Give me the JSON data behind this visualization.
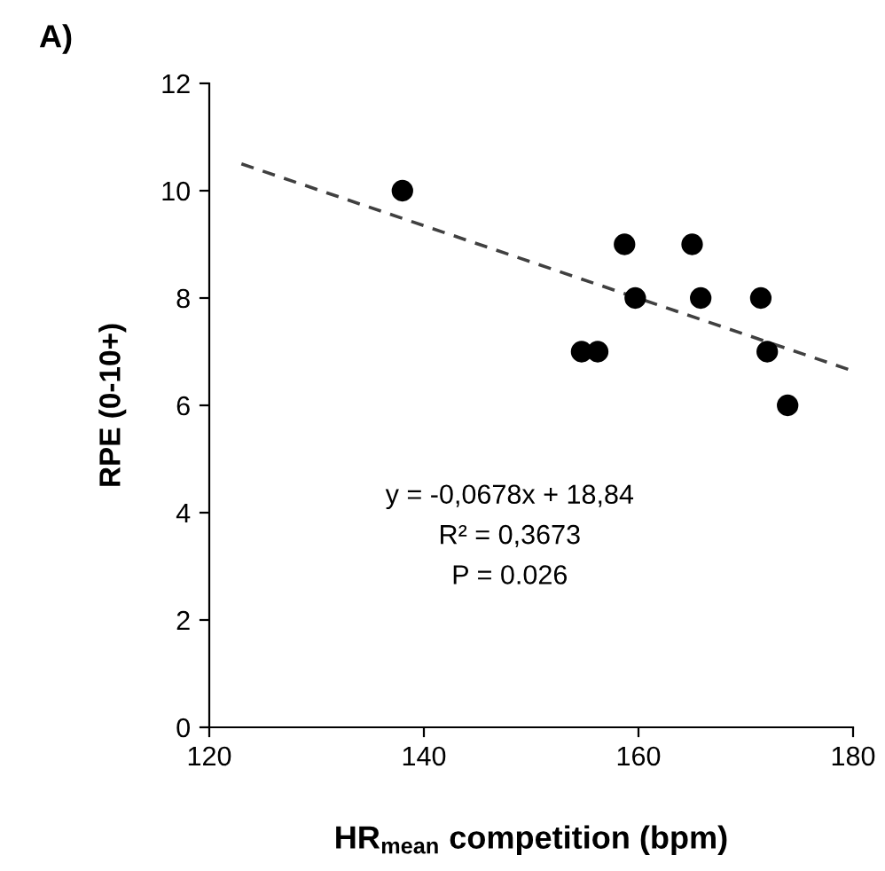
{
  "chart_data": {
    "type": "scatter",
    "title": "A)",
    "xlabel": "HR$_{mean}$ competition (bpm)",
    "ylabel": "RPE (0-10+)",
    "xlim": [
      120,
      180
    ],
    "ylim": [
      0,
      12
    ],
    "xticks": [
      120,
      140,
      160,
      180
    ],
    "yticks": [
      0,
      2,
      4,
      6,
      8,
      10,
      12
    ],
    "grid": false,
    "legend": false,
    "annotations": [
      "y = -0,0678x + 18,84",
      "R² = 0,3673",
      "P = 0.026"
    ],
    "series": [
      {
        "color": "#000000",
        "marker": "circle",
        "x": [
          138,
          158.7,
          165,
          159.7,
          165.8,
          171.4,
          154.7,
          156.2,
          172,
          173.9
        ],
        "values": [
          10,
          9,
          9,
          8,
          8,
          8,
          7,
          7,
          7,
          6
        ]
      },
      {
        "type": "line",
        "color": "#404040",
        "marker": "none",
        "line_style": "dashed",
        "x": [
          123,
          180
        ],
        "values": [
          10.5,
          6.64
        ]
      }
    ]
  }
}
